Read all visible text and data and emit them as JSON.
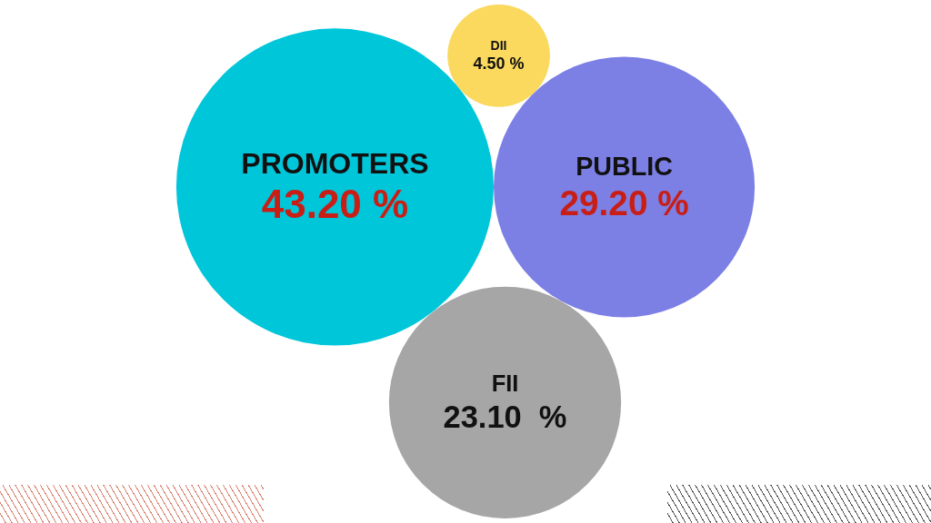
{
  "chart_data": {
    "type": "other",
    "categories": [
      "DII",
      "PROMOTERS",
      "PUBLIC",
      "FII"
    ],
    "values": [
      4.5,
      43.2,
      29.2,
      23.1
    ],
    "value_labels": [
      "4.50 %",
      "43.20 %",
      "29.20 %",
      "23.10  %"
    ],
    "colors": [
      "#fad95e",
      "#00c6da",
      "#7c7fe4",
      "#a6a6a6"
    ]
  }
}
